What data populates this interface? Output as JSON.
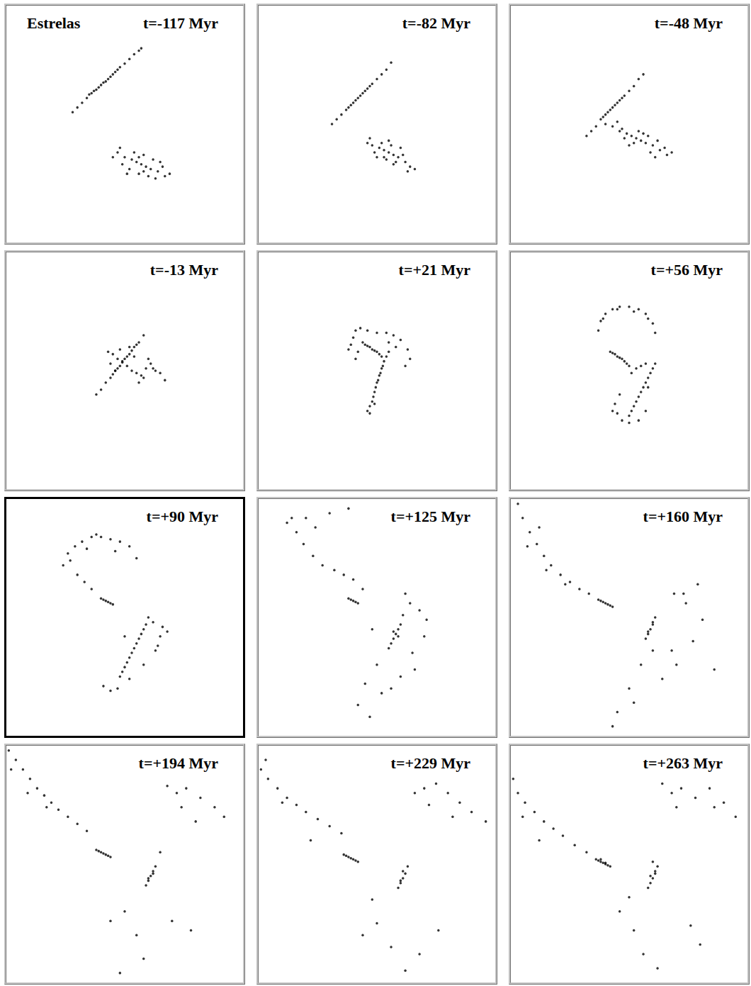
{
  "chart_data": [
    {
      "type": "scatter",
      "title": "t=-117 Myr",
      "annotations": [
        "Estrelas"
      ],
      "xlim": [
        0,
        100
      ],
      "ylim": [
        0,
        100
      ],
      "tick_labels": false,
      "color": "#000000",
      "marker": "circle",
      "x": [
        28,
        30,
        32,
        34,
        35,
        36,
        37,
        38,
        39,
        40,
        41,
        42,
        43,
        44,
        45,
        46,
        47,
        48,
        50,
        52,
        54,
        56,
        57,
        57,
        55,
        59,
        53,
        61,
        50,
        64,
        47,
        67,
        45,
        69,
        52,
        62,
        56,
        58,
        49,
        65,
        54,
        60,
        51,
        63,
        48,
        66,
        56,
        58
      ],
      "values": [
        55,
        57,
        59,
        61,
        62.5,
        63,
        64,
        64.5,
        65.5,
        66.5,
        67.5,
        68,
        69,
        70,
        71,
        72,
        73,
        74,
        75.5,
        77.5,
        79.5,
        81,
        82,
        33,
        34,
        32,
        35,
        31,
        36,
        30,
        38,
        28,
        36,
        29,
        31,
        35,
        29,
        37,
        33,
        34,
        38,
        28,
        29,
        27,
        40,
        32,
        36,
        30
      ]
    },
    {
      "type": "scatter",
      "title": "t=-82 Myr",
      "xlim": [
        0,
        100
      ],
      "ylim": [
        0,
        100
      ],
      "tick_labels": false,
      "color": "#000000",
      "marker": "circle",
      "x": [
        31,
        33,
        35,
        37,
        38,
        39,
        40,
        41,
        42,
        43,
        44,
        45,
        46,
        47,
        48,
        50,
        52,
        54,
        56,
        55,
        53,
        57,
        51,
        59,
        48,
        62,
        46,
        64,
        50,
        60,
        54,
        56,
        52,
        58,
        49,
        61,
        47,
        63,
        55,
        57,
        53,
        66
      ],
      "values": [
        50,
        52,
        54,
        56,
        57,
        58,
        59,
        60,
        61,
        62,
        63,
        64,
        65,
        66,
        67,
        69,
        71,
        73,
        76,
        38,
        39,
        37,
        40,
        36,
        41,
        34,
        42,
        32,
        36,
        40,
        35,
        41,
        42,
        34,
        38,
        37,
        44,
        30,
        43,
        33,
        36,
        31
      ]
    },
    {
      "type": "scatter",
      "title": "t=-48 Myr",
      "xlim": [
        0,
        100
      ],
      "ylim": [
        0,
        100
      ],
      "tick_labels": false,
      "color": "#000000",
      "marker": "circle",
      "x": [
        32,
        34,
        36,
        38,
        39,
        40,
        41,
        42,
        43,
        44,
        45,
        46,
        47,
        48,
        50,
        52,
        54,
        56,
        53,
        51,
        55,
        49,
        57,
        46,
        60,
        43,
        63,
        40,
        66,
        52,
        56,
        48,
        58,
        54,
        50,
        62,
        45,
        65,
        59,
        47,
        61,
        68
      ],
      "values": [
        45,
        47,
        49,
        52,
        53,
        54,
        55,
        56,
        57,
        58,
        59,
        60,
        61,
        62,
        64,
        66,
        69,
        71,
        44,
        45,
        43,
        46,
        42,
        47,
        41,
        49,
        39,
        50,
        37,
        42,
        46,
        44,
        45,
        47,
        41,
        43,
        51,
        40,
        38,
        48,
        36,
        38
      ]
    },
    {
      "type": "scatter",
      "title": "t=-13 Myr",
      "xlim": [
        0,
        100
      ],
      "ylim": [
        0,
        100
      ],
      "tick_labels": false,
      "color": "#000000",
      "marker": "circle",
      "x": [
        38,
        40,
        42,
        44,
        45,
        46,
        47,
        48,
        49,
        50,
        51,
        52,
        53,
        54,
        55,
        56,
        58,
        51,
        49,
        53,
        47,
        55,
        45,
        57,
        43,
        59,
        61,
        63,
        65,
        67,
        48,
        54,
        56,
        44,
        60,
        58,
        52,
        46,
        62
      ],
      "values": [
        40,
        42,
        45,
        47,
        48.5,
        50,
        51,
        52,
        53.5,
        55,
        56,
        57,
        58.5,
        60,
        61,
        62,
        65,
        52,
        54,
        50,
        55,
        49,
        57,
        48,
        58,
        51,
        53,
        50,
        49,
        46,
        59,
        56,
        45,
        53,
        55,
        47,
        60,
        50,
        51
      ]
    },
    {
      "type": "scatter",
      "title": "t=+21 Myr",
      "xlim": [
        0,
        100
      ],
      "ylim": [
        0,
        100
      ],
      "tick_labels": false,
      "color": "#000000",
      "marker": "circle",
      "x": [
        46,
        47,
        48,
        48.5,
        49,
        49.5,
        50,
        50.5,
        51,
        51.5,
        52,
        52.5,
        53,
        54,
        55,
        47,
        49,
        44,
        45,
        46,
        47,
        48,
        49,
        50,
        51,
        52,
        40,
        39,
        41,
        43,
        46,
        50,
        54,
        57,
        60,
        63,
        64,
        62,
        58,
        55,
        42,
        41,
        38
      ],
      "values": [
        33,
        35,
        37,
        39,
        41,
        43,
        45,
        46,
        48,
        49,
        51,
        52,
        54,
        56,
        58,
        32,
        36,
        62,
        61,
        60.5,
        60,
        59,
        58.5,
        58,
        57,
        56,
        64,
        61,
        67,
        68,
        67,
        66,
        66,
        65,
        63,
        59,
        55,
        52,
        60,
        62,
        58,
        55,
        59
      ]
    },
    {
      "type": "scatter",
      "title": "t=+56 Myr",
      "xlim": [
        0,
        100
      ],
      "ylim": [
        0,
        100
      ],
      "tick_labels": false,
      "color": "#000000",
      "marker": "circle",
      "x": [
        37,
        38,
        40,
        43,
        46,
        50,
        54,
        57,
        60,
        61,
        39,
        45,
        52,
        58,
        42,
        43,
        44,
        45,
        46,
        47,
        48,
        49,
        50,
        51,
        53,
        55,
        57,
        60,
        59,
        58,
        57,
        56,
        55,
        54,
        53,
        52,
        51,
        50,
        61,
        58,
        44,
        45,
        47,
        50,
        54,
        57,
        46,
        43
      ],
      "values": [
        67,
        71,
        74,
        76,
        77,
        77,
        76,
        74,
        70,
        66,
        72,
        76,
        75,
        72,
        58,
        57.5,
        57,
        56,
        55.5,
        55,
        54,
        53,
        52,
        49,
        51,
        52,
        53,
        51,
        49,
        47,
        45,
        43,
        41,
        39,
        37,
        35,
        33,
        31,
        53,
        43,
        36,
        32,
        29,
        28,
        29,
        33,
        40,
        33
      ]
    },
    {
      "type": "scatter",
      "title": "t=+90 Myr",
      "xlim": [
        0,
        100
      ],
      "ylim": [
        0,
        100
      ],
      "tick_labels": false,
      "color": "#000000",
      "marker": "circle",
      "x": [
        24,
        26,
        29,
        32,
        36,
        40,
        44,
        48,
        52,
        55,
        34,
        27,
        38,
        46,
        30,
        33,
        36,
        40,
        41,
        42,
        43,
        44,
        45,
        48,
        49,
        50,
        51,
        52,
        53,
        54,
        55,
        56,
        57,
        58,
        59,
        60,
        66,
        65,
        68,
        62,
        64,
        41,
        44,
        47,
        52,
        50,
        63,
        58
      ],
      "values": [
        72,
        77,
        80,
        82,
        84,
        84,
        83,
        82,
        80,
        75,
        79,
        74,
        85,
        78,
        68,
        65,
        62,
        58,
        57.5,
        57,
        56.5,
        56,
        55.5,
        25,
        27,
        29,
        31,
        33,
        35,
        37,
        39,
        41,
        43,
        45,
        47,
        50,
        46,
        42,
        44,
        48,
        38,
        21,
        19,
        20,
        24,
        42,
        36,
        30
      ]
    },
    {
      "type": "scatter",
      "title": "t=+125 Myr",
      "xlim": [
        0,
        100
      ],
      "ylim": [
        0,
        100
      ],
      "tick_labels": false,
      "color": "#000000",
      "marker": "circle",
      "x": [
        14,
        16,
        19,
        23,
        27,
        32,
        36,
        40,
        44,
        12,
        20,
        30,
        38,
        24,
        38,
        39,
        40,
        41,
        42,
        55,
        56,
        57,
        58,
        59,
        60,
        61,
        57,
        59,
        71,
        65,
        68,
        62,
        50,
        45,
        42,
        47,
        52,
        60,
        66,
        70,
        64,
        48,
        56
      ],
      "values": [
        92,
        86,
        81,
        76,
        72,
        70,
        68,
        66,
        62,
        90,
        92,
        94,
        96,
        88,
        58,
        57.5,
        57,
        56.5,
        56,
        37,
        39,
        41,
        43,
        45,
        47,
        51,
        44,
        42,
        49,
        35,
        53,
        60,
        30,
        22,
        13,
        8,
        18,
        25,
        28,
        42,
        56,
        45,
        20
      ]
    },
    {
      "type": "scatter",
      "title": "t=+160 Myr",
      "xlim": [
        0,
        100
      ],
      "ylim": [
        0,
        100
      ],
      "tick_labels": false,
      "color": "#000000",
      "marker": "circle",
      "x": [
        3,
        5,
        8,
        11,
        14,
        17,
        21,
        25,
        29,
        33,
        7,
        15,
        23,
        12,
        37,
        38,
        39,
        40,
        41,
        42,
        43,
        57,
        58,
        59,
        60,
        61,
        58,
        60,
        69,
        74,
        81,
        77,
        70,
        64,
        55,
        50,
        45,
        43,
        52,
        60,
        68,
        73,
        79,
        86
      ],
      "values": [
        98,
        92,
        86,
        81,
        76,
        72,
        68,
        65,
        62,
        60,
        80,
        70,
        64,
        88,
        57.5,
        57,
        56.5,
        56,
        55.5,
        55,
        54.5,
        41,
        43,
        45,
        47,
        50,
        44,
        48,
        60,
        56,
        49,
        40,
        30,
        24,
        30,
        20,
        10,
        4,
        14,
        36,
        36,
        60,
        64,
        28
      ]
    },
    {
      "type": "scatter",
      "title": "t=+194 Myr",
      "xlim": [
        0,
        100
      ],
      "ylim": [
        0,
        100
      ],
      "tick_labels": false,
      "color": "#000000",
      "marker": "circle",
      "x": [
        1,
        4,
        7,
        10,
        13,
        16,
        19,
        22,
        26,
        30,
        34,
        2,
        9,
        17,
        38,
        39,
        40,
        41,
        42,
        43,
        44,
        59,
        60,
        61,
        62,
        63,
        60,
        62,
        68,
        72,
        76,
        82,
        88,
        92,
        74,
        80,
        50,
        55,
        58,
        48,
        44,
        70,
        78,
        65
      ],
      "values": [
        98,
        94,
        90,
        86,
        82,
        79,
        76,
        73,
        70,
        67,
        64,
        90,
        80,
        74,
        56,
        55.5,
        55,
        54.5,
        54,
        53.5,
        53,
        41,
        43,
        45,
        47,
        49,
        44,
        46,
        83,
        80,
        82,
        78,
        74,
        70,
        74,
        68,
        30,
        20,
        10,
        4,
        26,
        26,
        22,
        55
      ]
    },
    {
      "type": "scatter",
      "title": "t=+229 Myr",
      "xlim": [
        0,
        100
      ],
      "ylim": [
        0,
        100
      ],
      "tick_labels": false,
      "color": "#000000",
      "marker": "circle",
      "x": [
        1,
        4,
        8,
        12,
        16,
        20,
        25,
        30,
        35,
        3,
        10,
        22,
        36,
        37,
        38,
        39,
        40,
        41,
        42,
        59,
        60,
        61,
        62,
        63,
        61,
        60,
        66,
        70,
        75,
        80,
        85,
        90,
        96,
        72,
        82,
        50,
        56,
        62,
        68,
        48,
        76,
        44
      ],
      "values": [
        90,
        86,
        82,
        78,
        75,
        72,
        69,
        66,
        63,
        94,
        76,
        60,
        54,
        53.5,
        53,
        52.5,
        52,
        51.5,
        51,
        40,
        42,
        44,
        46,
        49,
        47,
        43,
        80,
        82,
        84,
        80,
        76,
        72,
        68,
        75,
        70,
        25,
        15,
        5,
        12,
        35,
        22,
        20
      ]
    },
    {
      "type": "scatter",
      "title": "t=+263 Myr",
      "xlim": [
        0,
        100
      ],
      "ylim": [
        0,
        100
      ],
      "tick_labels": false,
      "color": "#000000",
      "marker": "circle",
      "x": [
        1,
        3,
        6,
        10,
        14,
        18,
        22,
        27,
        32,
        5,
        12,
        36,
        37,
        38,
        39,
        40,
        41,
        42,
        38,
        40,
        58,
        59,
        60,
        61,
        62,
        59,
        61,
        60,
        64,
        68,
        72,
        78,
        84,
        90,
        95,
        70,
        86,
        46,
        52,
        56,
        62,
        50,
        76,
        80
      ],
      "values": [
        86,
        80,
        76,
        72,
        68,
        65,
        62,
        58,
        55,
        70,
        60,
        52,
        51.5,
        51,
        50.5,
        50,
        49.5,
        49,
        52,
        50.5,
        40,
        42,
        44,
        46,
        49,
        45,
        47,
        51,
        84,
        80,
        82,
        78,
        82,
        76,
        70,
        74,
        74,
        30,
        22,
        12,
        6,
        36,
        24,
        16
      ]
    }
  ]
}
